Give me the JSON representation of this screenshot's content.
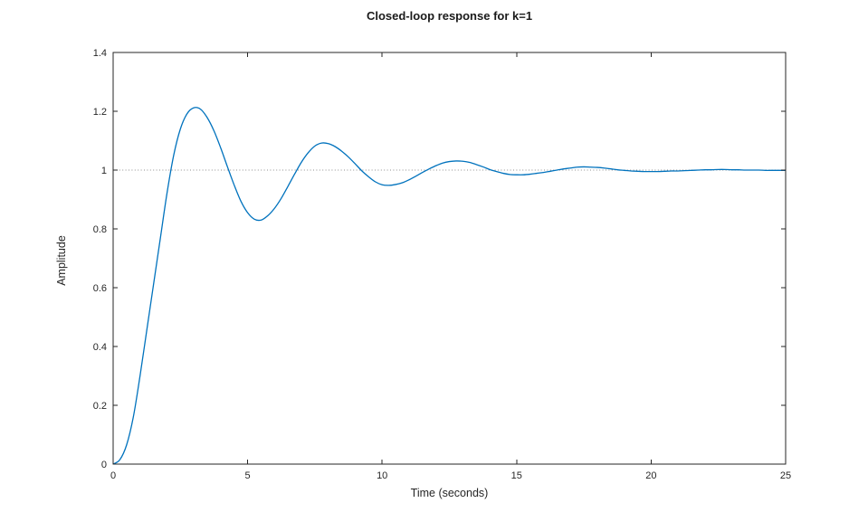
{
  "figure": {
    "title": "Closed-loop response for k=1",
    "xlabel": "Time (seconds)",
    "ylabel": "Amplitude"
  },
  "colors": {
    "line": "#0072BD",
    "reference_line": "#8f8f8f",
    "axis": "#262626",
    "background": "#ffffff"
  },
  "chart_data": {
    "type": "line",
    "title": "Closed-loop response for k=1",
    "xlabel": "Time (seconds)",
    "ylabel": "Amplitude",
    "xlim": [
      0,
      25
    ],
    "ylim": [
      0,
      1.4
    ],
    "x_ticks": [
      0,
      5,
      10,
      15,
      20,
      25
    ],
    "y_ticks": [
      0,
      0.2,
      0.4,
      0.6,
      0.8,
      1,
      1.2,
      1.4
    ],
    "grid": false,
    "box": true,
    "reference_line": {
      "y": 1.0,
      "style": "dotted"
    },
    "steady_state_value": 1.0,
    "peak_amplitude": 1.21,
    "peak_time": 3.0,
    "series": [
      {
        "color": "#0072BD",
        "x": [
          0,
          0.25,
          0.5,
          0.75,
          1,
          1.25,
          1.5,
          1.75,
          2,
          2.25,
          2.5,
          2.75,
          3,
          3.25,
          3.5,
          3.75,
          4,
          4.25,
          4.5,
          4.75,
          5,
          5.25,
          5.5,
          5.75,
          6,
          6.25,
          6.5,
          6.75,
          7,
          7.25,
          7.5,
          7.75,
          8,
          8.25,
          8.5,
          8.75,
          9,
          9.25,
          9.5,
          9.75,
          10,
          10.25,
          10.5,
          10.75,
          11,
          11.25,
          11.5,
          11.75,
          12,
          12.25,
          12.5,
          12.75,
          13,
          13.25,
          13.5,
          13.75,
          14,
          14.25,
          14.5,
          14.75,
          15,
          15.25,
          15.5,
          15.75,
          16,
          16.25,
          16.5,
          16.75,
          17,
          17.25,
          17.5,
          17.75,
          18,
          18.25,
          18.5,
          18.75,
          19,
          19.25,
          19.5,
          19.75,
          20,
          20.25,
          20.5,
          20.75,
          21,
          21.25,
          21.5,
          21.75,
          22,
          22.25,
          22.5,
          22.75,
          23,
          23.25,
          23.5,
          23.75,
          24,
          24.25,
          24.5,
          24.75,
          25
        ],
        "y": [
          0,
          0.015,
          0.065,
          0.16,
          0.3,
          0.455,
          0.61,
          0.765,
          0.92,
          1.05,
          1.14,
          1.192,
          1.212,
          1.207,
          1.178,
          1.133,
          1.075,
          1.011,
          0.949,
          0.894,
          0.855,
          0.833,
          0.83,
          0.845,
          0.87,
          0.904,
          0.945,
          0.987,
          1.027,
          1.059,
          1.082,
          1.092,
          1.09,
          1.08,
          1.064,
          1.044,
          1.021,
          0.997,
          0.977,
          0.96,
          0.95,
          0.948,
          0.951,
          0.957,
          0.967,
          0.979,
          0.992,
          1.004,
          1.015,
          1.024,
          1.029,
          1.031,
          1.03,
          1.026,
          1.019,
          1.011,
          1.002,
          0.995,
          0.989,
          0.985,
          0.984,
          0.984,
          0.986,
          0.989,
          0.992,
          0.996,
          1,
          1.004,
          1.007,
          1.01,
          1.011,
          1.01,
          1.009,
          1.007,
          1.004,
          1.001,
          0.999,
          0.997,
          0.996,
          0.995,
          0.995,
          0.995,
          0.996,
          0.997,
          0.997,
          0.998,
          0.999,
          1,
          1.001,
          1.001,
          1.002,
          1.002,
          1.001,
          1.001,
          1,
          1,
          1,
          0.999,
          0.999,
          0.999,
          0.999
        ]
      }
    ]
  }
}
